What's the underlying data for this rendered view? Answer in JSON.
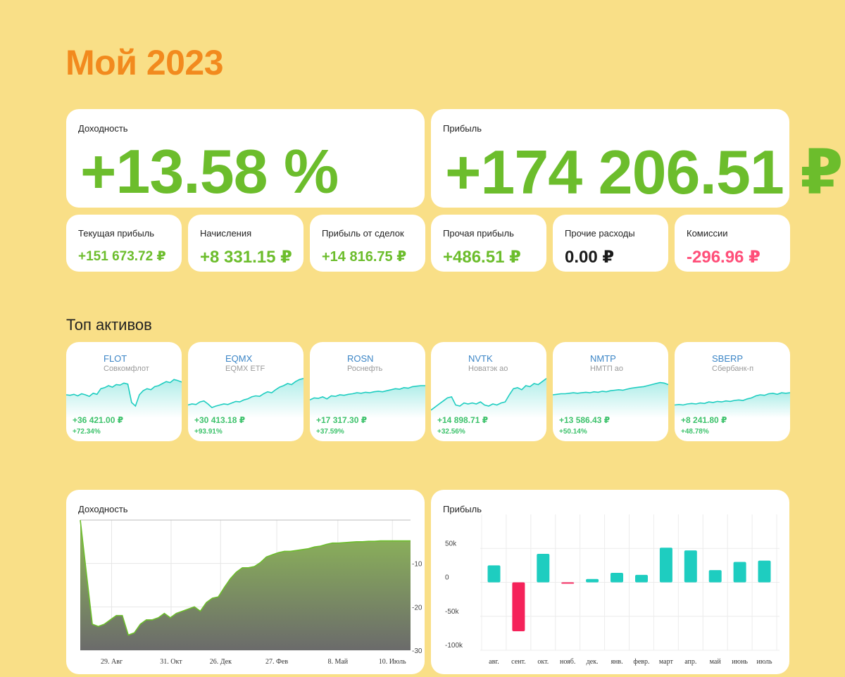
{
  "page": {
    "title": "Мой 2023"
  },
  "summary": {
    "yield": {
      "label": "Доходность",
      "value": "+13.58 %"
    },
    "profit": {
      "label": "Прибыль",
      "value": "+174 206.51 ₽"
    }
  },
  "metrics": [
    {
      "label": "Текущая прибыль",
      "value": "+151 673.72 ₽",
      "tone": "pos"
    },
    {
      "label": "Начисления",
      "value": "+8 331.15 ₽",
      "tone": "pos"
    },
    {
      "label": "Прибыль от сделок",
      "value": "+14 816.75 ₽",
      "tone": "pos"
    },
    {
      "label": "Прочая прибыль",
      "value": "+486.51 ₽",
      "tone": "pos"
    },
    {
      "label": "Прочие расходы",
      "value": "0.00 ₽",
      "tone": "neutral"
    },
    {
      "label": "Комиссии",
      "value": "-296.96 ₽",
      "tone": "neg"
    }
  ],
  "top_assets": {
    "title": "Топ активов",
    "items": [
      {
        "ticker": "FLOT",
        "name": "Совкомфлот",
        "profit": "+36 421.00 ₽",
        "pct": "+72.34%",
        "spark": [
          40,
          39,
          41,
          38,
          42,
          40,
          37,
          43,
          41,
          52,
          54,
          58,
          55,
          60,
          59,
          63,
          61,
          25,
          18,
          40,
          48,
          52,
          50,
          56,
          58,
          62,
          66,
          64,
          70,
          68,
          65
        ]
      },
      {
        "ticker": "EQMX",
        "name": "EQMX ETF",
        "profit": "+30 413.18 ₽",
        "pct": "+93.91%",
        "spark": [
          20,
          22,
          21,
          26,
          28,
          22,
          15,
          18,
          20,
          22,
          21,
          24,
          27,
          26,
          30,
          32,
          36,
          38,
          37,
          42,
          46,
          44,
          50,
          55,
          58,
          62,
          60,
          66,
          70,
          72
        ]
      },
      {
        "ticker": "ROSN",
        "name": "Роснефть",
        "profit": "+17 317.30 ₽",
        "pct": "+37.59%",
        "spark": [
          30,
          34,
          33,
          36,
          32,
          38,
          37,
          40,
          39,
          41,
          42,
          44,
          43,
          45,
          44,
          46,
          47,
          46,
          48,
          50,
          52,
          51,
          54,
          53,
          56,
          57,
          58,
          58
        ]
      },
      {
        "ticker": "NVTK",
        "name": "Новатэк ао",
        "profit": "+14 898.71 ₽",
        "pct": "+32.56%",
        "spark": [
          10,
          16,
          22,
          28,
          34,
          36,
          20,
          18,
          24,
          22,
          24,
          22,
          26,
          20,
          18,
          22,
          20,
          24,
          26,
          40,
          52,
          54,
          50,
          58,
          56,
          62,
          60,
          66,
          72
        ]
      },
      {
        "ticker": "NMTP",
        "name": "НМТП ао",
        "profit": "+13 586.43 ₽",
        "pct": "+50.14%",
        "spark": [
          40,
          41,
          42,
          42,
          43,
          44,
          43,
          44,
          45,
          44,
          46,
          45,
          47,
          46,
          48,
          49,
          50,
          49,
          51,
          53,
          54,
          55,
          56,
          58,
          60,
          62,
          64,
          63,
          60
        ]
      },
      {
        "ticker": "SBERP",
        "name": "Сбербанк-п",
        "profit": "+8 241.80 ₽",
        "pct": "+48.78%",
        "spark": [
          20,
          21,
          20,
          22,
          23,
          22,
          24,
          23,
          26,
          25,
          27,
          26,
          28,
          27,
          29,
          30,
          29,
          32,
          34,
          38,
          40,
          39,
          42,
          43,
          41,
          44,
          43,
          44
        ]
      }
    ]
  },
  "yield_chart": {
    "label": "Доходность"
  },
  "profit_chart": {
    "label": "Прибыль"
  },
  "chart_data": [
    {
      "type": "area",
      "title": "Доходность",
      "x_ticks": [
        "29. Авг",
        "31. Окт",
        "26. Дек",
        "27. Фев",
        "8. Май",
        "10. Июль"
      ],
      "y_ticks": [
        "-10",
        "-20",
        "-30"
      ],
      "ylim": [
        -30,
        0
      ],
      "x": [
        0,
        1,
        2,
        3,
        4,
        5,
        6,
        7,
        8,
        9,
        10,
        11,
        12,
        13,
        14,
        15,
        16,
        17,
        18,
        19,
        20,
        21,
        22,
        23,
        24,
        25,
        26,
        27,
        28,
        29,
        30,
        31,
        32,
        33,
        34,
        35,
        36,
        37,
        38,
        39,
        40,
        41,
        42,
        43,
        44,
        45,
        46,
        47,
        48,
        49,
        50,
        51,
        52,
        53,
        54,
        55
      ],
      "values": [
        0,
        -12,
        -24,
        -24.5,
        -24,
        -23,
        -22,
        -22,
        -26.5,
        -26,
        -24,
        -23,
        -23,
        -22.5,
        -21.5,
        -22.5,
        -21.5,
        -21,
        -20.5,
        -20,
        -21,
        -19,
        -18,
        -17.7,
        -15.5,
        -13.5,
        -12,
        -11,
        -11,
        -10.7,
        -9.8,
        -8.5,
        -8,
        -7.5,
        -7.2,
        -7.2,
        -7,
        -6.8,
        -6.6,
        -6.2,
        -6,
        -5.6,
        -5.3,
        -5.3,
        -5.2,
        -5.1,
        -5,
        -5,
        -4.9,
        -4.9,
        -4.8,
        -4.8,
        -4.8,
        -4.8,
        -4.8,
        -4.8
      ]
    },
    {
      "type": "bar",
      "title": "Прибыль",
      "categories": [
        "авг.",
        "сент.",
        "окт.",
        "нояб.",
        "дек.",
        "янв.",
        "февр.",
        "март",
        "апр.",
        "май",
        "июнь",
        "июль"
      ],
      "values": [
        25000,
        -72000,
        42000,
        -2000,
        5000,
        14000,
        11000,
        51000,
        47000,
        18000,
        30000,
        32000
      ],
      "y_ticks": [
        "50k",
        "0",
        "-50k",
        "-100k"
      ],
      "ylim": [
        -100000,
        100000
      ],
      "colors": {
        "positive": "#1ecdc0",
        "negative": "#f5225a"
      }
    }
  ]
}
